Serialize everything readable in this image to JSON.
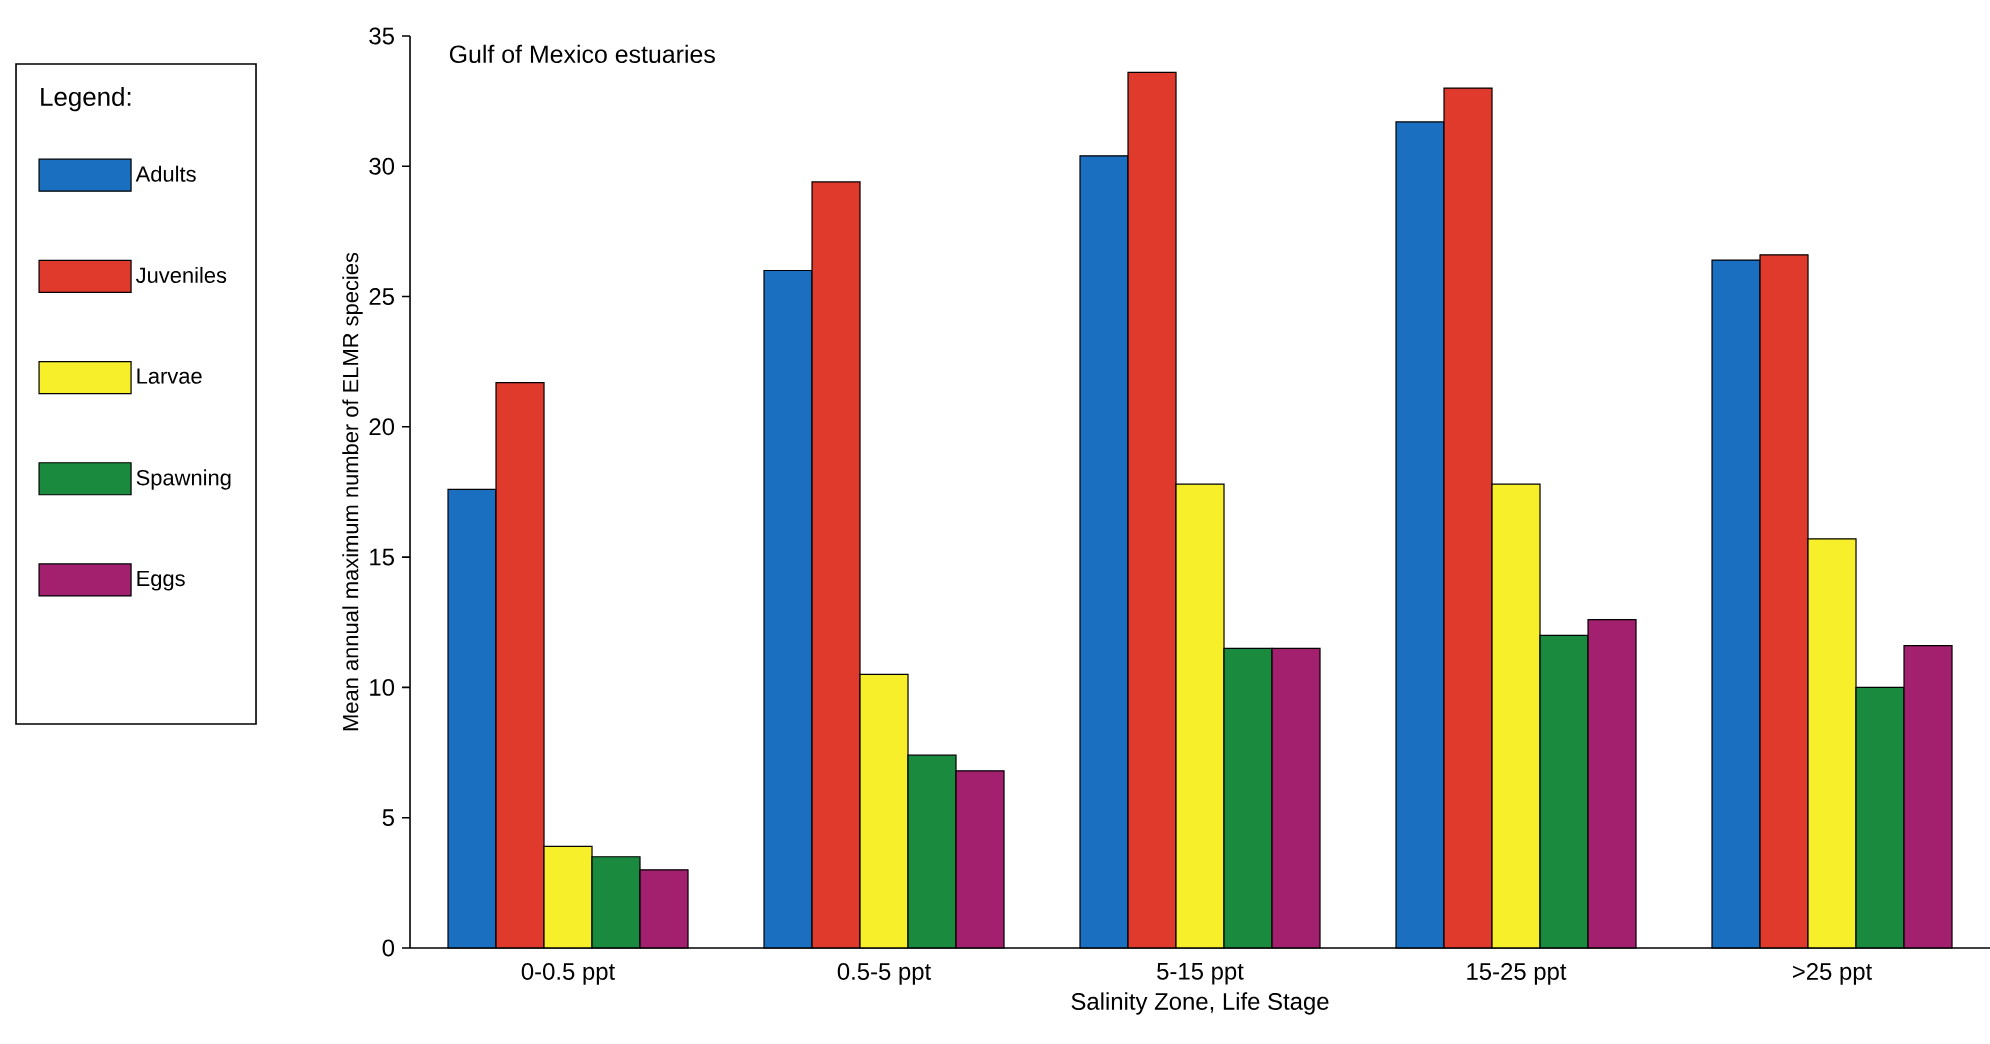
{
  "chart_data": {
    "type": "bar",
    "title": "Gulf of Mexico estuaries",
    "xlabel": "Salinity Zone, Life Stage",
    "ylabel": "Mean annual maximum number of ELMR species",
    "legend_title": "Legend:",
    "categories": [
      "0-0.5 ppt",
      "0.5-5 ppt",
      "5-15 ppt",
      "15-25 ppt",
      ">25 ppt"
    ],
    "series": [
      {
        "name": "Adults",
        "color": "#1a6fc0",
        "values": [
          17.6,
          26.0,
          30.4,
          31.7,
          26.4
        ]
      },
      {
        "name": "Juveniles",
        "color": "#e03a2c",
        "values": [
          21.7,
          29.4,
          33.6,
          33.0,
          26.6
        ]
      },
      {
        "name": "Larvae",
        "color": "#f7ef2a",
        "values": [
          3.9,
          10.5,
          17.8,
          17.8,
          15.7
        ]
      },
      {
        "name": "Spawning",
        "color": "#1a8a3e",
        "values": [
          3.5,
          7.4,
          11.5,
          12.0,
          10.0
        ]
      },
      {
        "name": "Eggs",
        "color": "#a3206e",
        "values": [
          3.0,
          6.8,
          11.5,
          12.6,
          11.6
        ]
      }
    ],
    "ylim": [
      0,
      35
    ],
    "yticks": [
      0,
      5,
      10,
      15,
      20,
      25,
      30,
      35
    ],
    "legend": "left"
  }
}
